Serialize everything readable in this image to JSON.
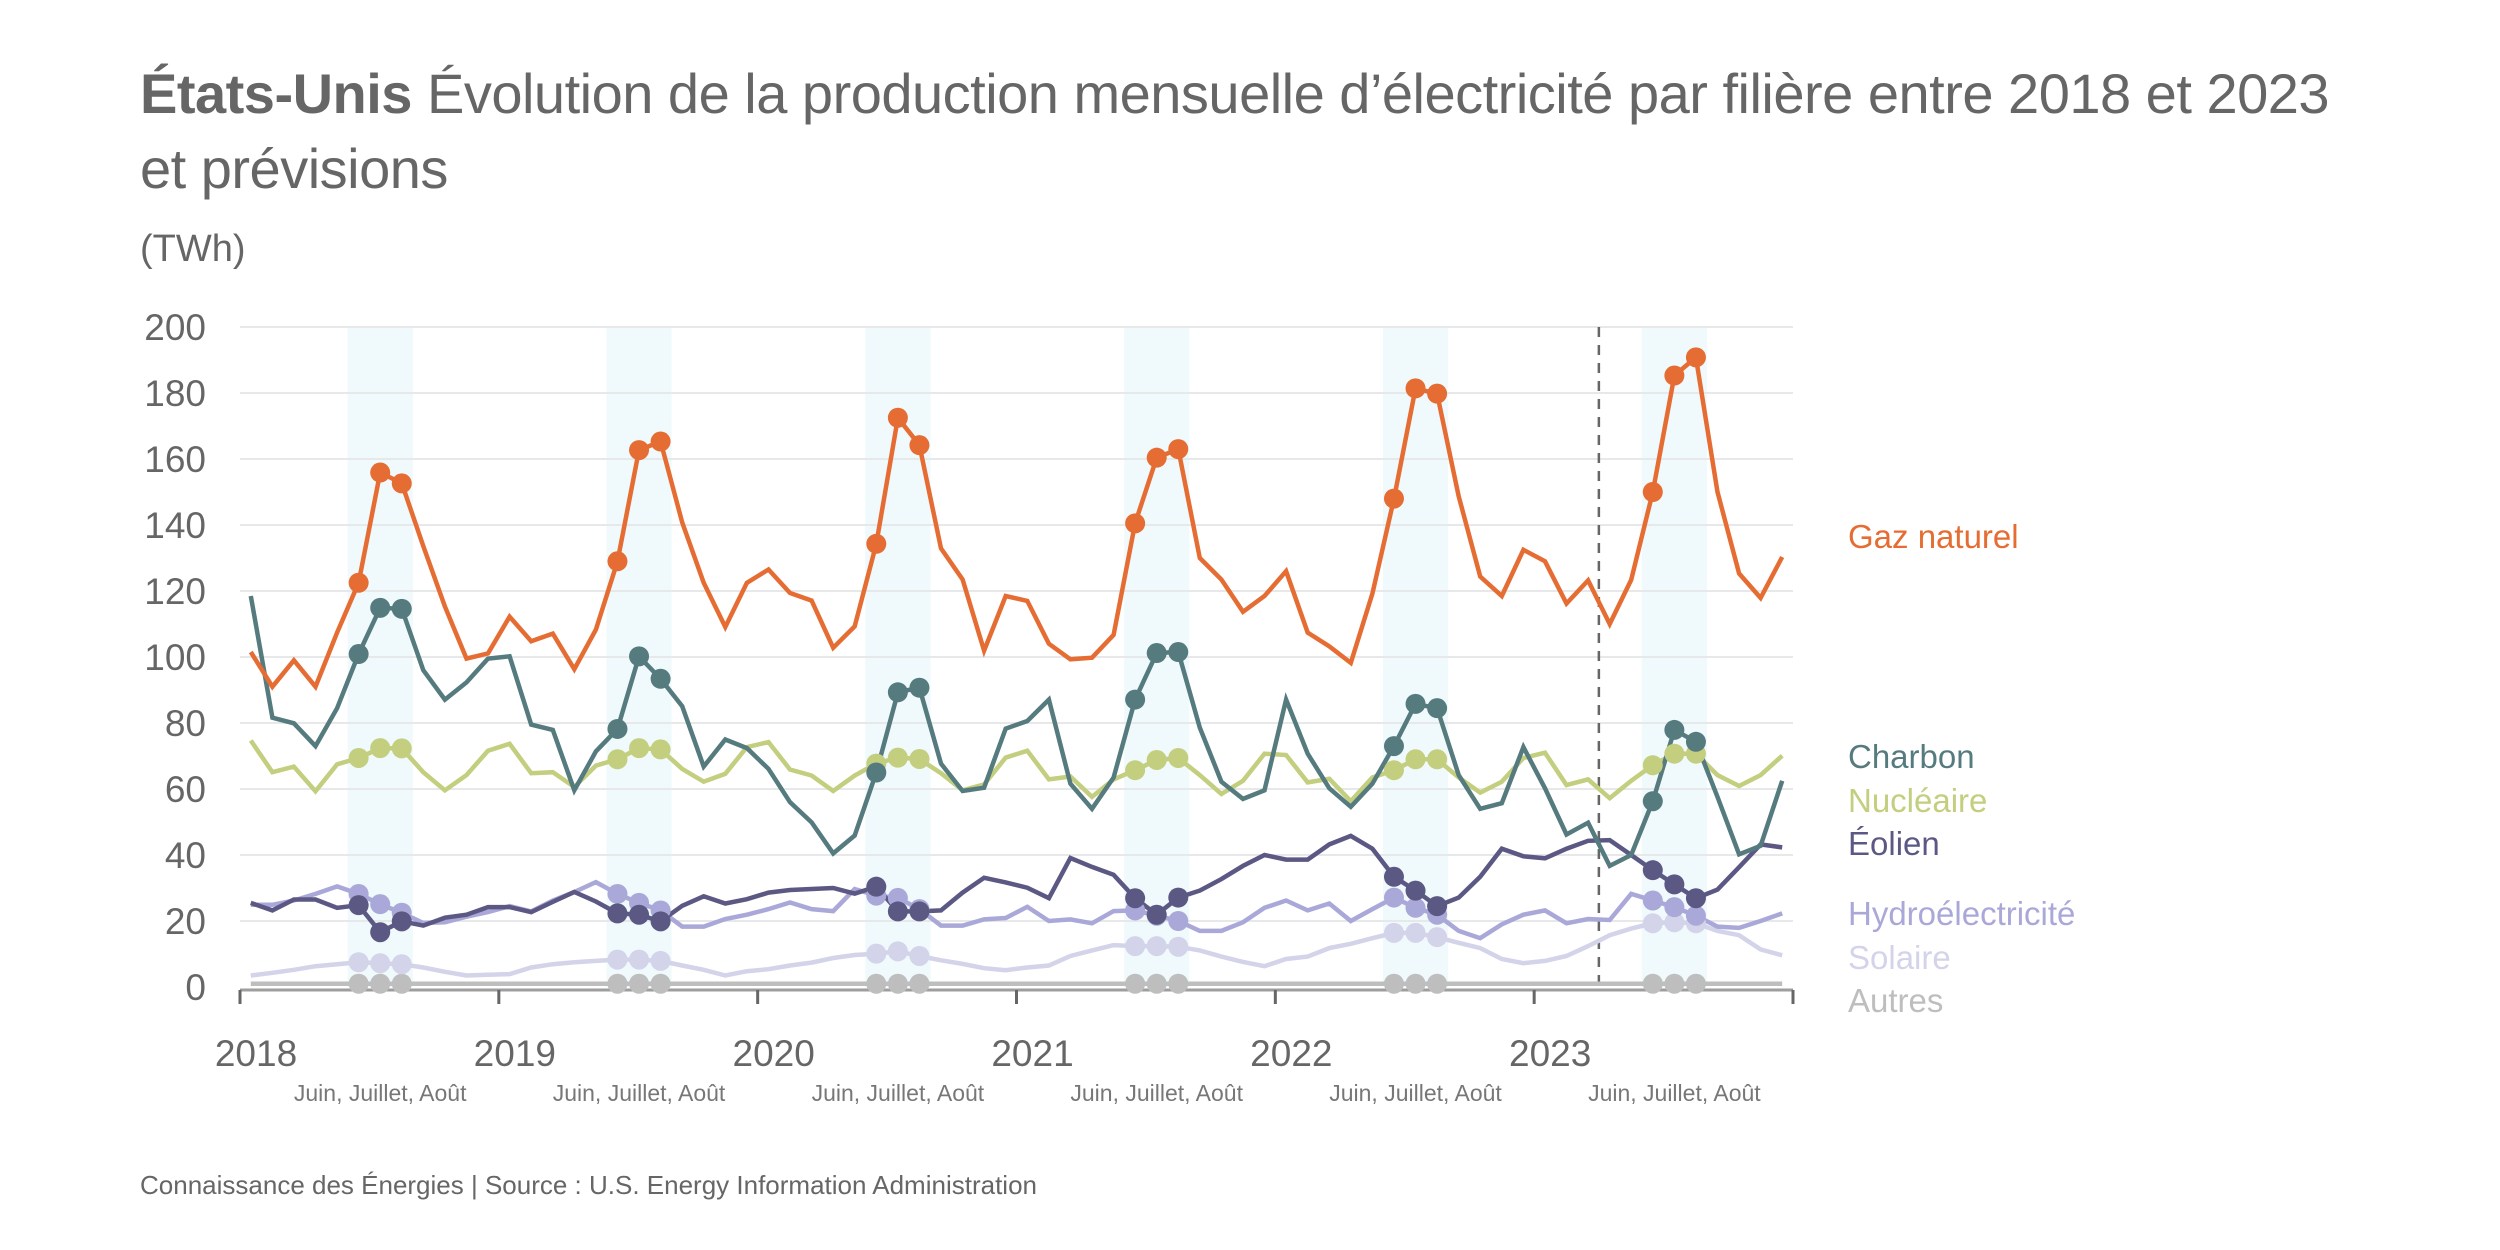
{
  "title": {
    "country": "États-Unis",
    "text": " Évolution de la production mensuelle d’électricité par filière entre 2018 et 2023 et prévisions"
  },
  "unit_label": "(TWh)",
  "footer": "Connaissance des Énergies | Source : U.S. Energy Information Administration",
  "chart_data": {
    "type": "line",
    "title": "États-Unis Évolution de la production mensuelle d’électricité par filière entre 2018 et 2023 et prévisions",
    "xlabel": "",
    "ylabel": "(TWh)",
    "ylim": [
      0,
      200
    ],
    "yticks": [
      0,
      20,
      40,
      60,
      80,
      100,
      120,
      140,
      160,
      180,
      200
    ],
    "grid": true,
    "x_start": "2018-01",
    "x_end": "2023-12",
    "x_frequency": "monthly",
    "xtick_labels": [
      "2018",
      "2019",
      "2020",
      "2021",
      "2022",
      "2023"
    ],
    "highlight_label": "Juin, Juillet, Août",
    "highlight_months": [
      6,
      7,
      8
    ],
    "forecast_start": "2023-04",
    "legend_position": "right",
    "series": [
      {
        "name": "Gaz naturel",
        "color": "#E56D33",
        "values": [
          101.5,
          91,
          99,
          91,
          107.4,
          122.5,
          155.9,
          152.6,
          133.6,
          115.3,
          99.5,
          101.1,
          112.2,
          104.8,
          107.1,
          96.3,
          108.3,
          129,
          162.7,
          165.3,
          140.8,
          122.5,
          109.1,
          122.5,
          126.5,
          119.4,
          117.1,
          102.8,
          109.3,
          134.3,
          172.5,
          164.2,
          132.9,
          123.5,
          101.9,
          118.5,
          117,
          104,
          99.3,
          99.8,
          106.7,
          140.5,
          160.4,
          163,
          130,
          123.5,
          113.7,
          118.5,
          126,
          107.4,
          103.2,
          98.2,
          119.2,
          148,
          181.4,
          179.8,
          148.7,
          124.4,
          118.5,
          132.5,
          129,
          116.2,
          123.2,
          110,
          123.4,
          150,
          185.3,
          190.8,
          150,
          125.3,
          117.9,
          130.3
        ]
      },
      {
        "name": "Charbon",
        "color": "#557B7F",
        "values": [
          118.5,
          81.6,
          79.9,
          73,
          84.5,
          100.9,
          114.9,
          114.6,
          96,
          87.1,
          92.3,
          99.5,
          100.2,
          79.5,
          77.9,
          59.6,
          71.4,
          78.2,
          100.2,
          93.4,
          85.1,
          66.8,
          75,
          72.4,
          66.1,
          56,
          49.9,
          40.5,
          45.9,
          65,
          89.3,
          90.7,
          67.7,
          59.4,
          60.4,
          78.3,
          80.6,
          87.1,
          61.6,
          54,
          63.5,
          87.1,
          101.2,
          101.5,
          78.6,
          62.2,
          57,
          59.6,
          87.1,
          70.7,
          60.2,
          54.6,
          61.6,
          73,
          85.8,
          84.5,
          64.2,
          54,
          55.7,
          72.7,
          60.2,
          46.2,
          49.8,
          36.7,
          40,
          56.3,
          77.9,
          74.3,
          57.6,
          40.2,
          42.8,
          62.5
        ]
      },
      {
        "name": "Nucléaire",
        "color": "#C3CE7E",
        "values": [
          74.7,
          65.1,
          66.8,
          59.3,
          67.5,
          69.4,
          72.4,
          72.3,
          65.1,
          59.6,
          64.2,
          71.6,
          73.7,
          64.8,
          65.1,
          60.6,
          67.1,
          69,
          72.4,
          72,
          66.1,
          62.2,
          64.6,
          72.7,
          74.2,
          65.9,
          64.1,
          59.4,
          64.1,
          67.7,
          69.5,
          69.1,
          64.8,
          59.6,
          61.4,
          69.5,
          71.6,
          62.9,
          63.8,
          57.6,
          62.9,
          65.7,
          68.8,
          69.4,
          64.2,
          58.5,
          62.5,
          70.7,
          70.3,
          62,
          63.1,
          56.3,
          63.5,
          65.7,
          69,
          69,
          63.5,
          58.9,
          62.2,
          69.4,
          71,
          61.2,
          62.9,
          57.2,
          62.5,
          67.2,
          70.7,
          70.7,
          64.2,
          60.9,
          64.2,
          70.1
        ]
      },
      {
        "name": "Éolien",
        "color": "#5B5884",
        "values": [
          25.5,
          23.2,
          26.5,
          26.5,
          24,
          24.8,
          16.6,
          19.9,
          18.6,
          21,
          21.9,
          24.2,
          24.2,
          22.7,
          25.8,
          28.8,
          25.9,
          22.3,
          21.9,
          19.9,
          24.6,
          27.5,
          25.3,
          26.6,
          28.6,
          29.4,
          29.7,
          30,
          28.3,
          30.4,
          22.9,
          22.9,
          23.2,
          28.6,
          33.1,
          31.7,
          30.1,
          26.9,
          39.1,
          36.4,
          34,
          26.9,
          21.9,
          27.1,
          29.2,
          32.7,
          36.7,
          40,
          38.6,
          38.6,
          43.2,
          45.8,
          41.9,
          33.4,
          29.2,
          24.5,
          27.1,
          33.4,
          41.9,
          39.6,
          39,
          41.9,
          44.3,
          44.5,
          40,
          35.4,
          31.1,
          26.9,
          29.5,
          36.3,
          43.2,
          42.3
        ]
      },
      {
        "name": "Hydroélectricité",
        "color": "#AAA8D8",
        "values": [
          24.9,
          24.9,
          26.2,
          28.2,
          30.5,
          28.2,
          25.1,
          22.5,
          19.4,
          19.6,
          21.3,
          22.7,
          24.5,
          22.9,
          26.2,
          28.8,
          31.8,
          28.2,
          25.5,
          23.2,
          18.3,
          18.3,
          20.6,
          21.9,
          23.6,
          25.6,
          23.6,
          23,
          29.7,
          27.7,
          27,
          23.6,
          18.6,
          18.6,
          20.5,
          20.9,
          24.3,
          20,
          20.5,
          19.3,
          23,
          23.2,
          21.6,
          20,
          17,
          17,
          19.6,
          24,
          26.2,
          23.2,
          25.3,
          20,
          23.6,
          27.1,
          24,
          21.9,
          17,
          14.8,
          19,
          21.9,
          23.2,
          19.3,
          20.6,
          20.3,
          28.2,
          26.2,
          24.2,
          21.6,
          18.3,
          17.9,
          20,
          22.3
        ]
      },
      {
        "name": "Solaire",
        "color": "#D3D3EA",
        "values": [
          3.5,
          4.3,
          5.2,
          6.3,
          6.9,
          7.5,
          7.2,
          6.9,
          5.9,
          4.6,
          3.5,
          3.7,
          3.9,
          5.9,
          6.9,
          7.5,
          7.9,
          8.3,
          8.3,
          7.9,
          6.5,
          5.2,
          3.5,
          4.8,
          5.4,
          6.5,
          7.4,
          8.8,
          9.7,
          10.1,
          10.8,
          9.4,
          8.1,
          7,
          5.7,
          5.1,
          5.9,
          6.5,
          9.4,
          11.1,
          12.7,
          12.4,
          12.4,
          12.2,
          11.1,
          9.2,
          7.6,
          6.3,
          8.5,
          9.2,
          11.8,
          13.1,
          14.8,
          16.4,
          16.4,
          15.1,
          13.4,
          11.8,
          8.5,
          7.2,
          7.9,
          9.4,
          12.4,
          15.7,
          17.7,
          19.3,
          19.6,
          19.3,
          17,
          15.7,
          11.4,
          9.6
        ]
      },
      {
        "name": "Autres",
        "color": "#BEBEBE",
        "values": [
          1,
          1,
          1,
          1,
          1,
          1,
          1,
          1,
          1,
          1,
          1,
          1,
          1,
          1,
          1,
          1,
          1,
          1,
          1,
          1,
          1,
          1,
          1,
          1,
          1,
          1,
          1,
          1,
          1,
          1,
          1,
          1,
          1,
          1,
          1,
          1,
          1,
          1,
          1,
          1,
          1,
          1,
          1,
          1,
          1,
          1,
          1,
          1,
          1,
          1,
          1,
          1,
          1,
          1,
          1,
          1,
          1,
          1,
          1,
          1,
          1,
          1,
          1,
          1,
          1,
          1,
          1,
          1,
          1,
          1,
          1,
          1
        ]
      }
    ]
  },
  "colors": {
    "text": "#666666",
    "grid": "#E6E8EA",
    "axis": "#9E9E9E",
    "highlight_band": "#F0F9FB",
    "forecast_line": "#666666"
  }
}
